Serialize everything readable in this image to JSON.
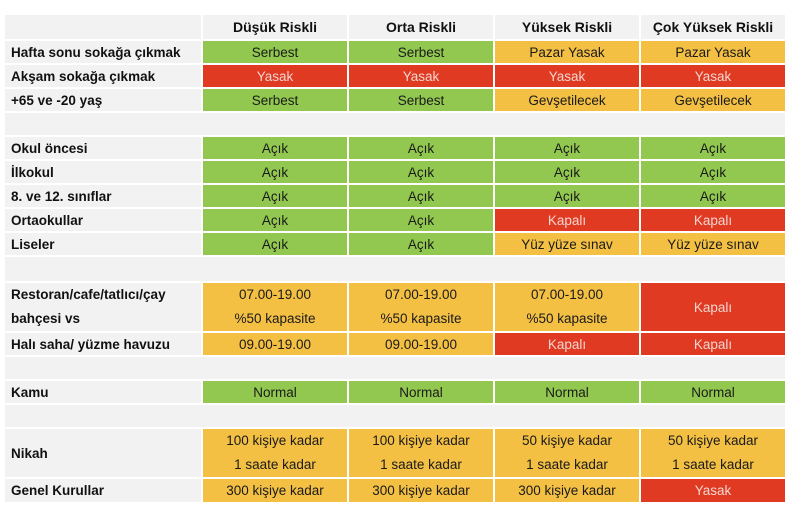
{
  "columns": [
    "Düşük Riskli",
    "Orta Riskli",
    "Yüksek Riskli",
    "Çok Yüksek Riskli"
  ],
  "colors": {
    "green": "#92c84f",
    "yellow": "#f4c044",
    "red": "#e03a22"
  },
  "rows": {
    "hafta_sonu": {
      "label": "Hafta sonu sokağa çıkmak",
      "values": [
        "Serbest",
        "Serbest",
        "Pazar Yasak",
        "Pazar Yasak"
      ]
    },
    "aksam": {
      "label": "Akşam sokağa çıkmak",
      "values": [
        "Yasak",
        "Yasak",
        "Yasak",
        "Yasak"
      ]
    },
    "yas": {
      "label": "+65 ve -20 yaş",
      "values": [
        "Serbest",
        "Serbest",
        "Gevşetilecek",
        "Gevşetilecek"
      ]
    },
    "okul_oncesi": {
      "label": "Okul öncesi",
      "values": [
        "Açık",
        "Açık",
        "Açık",
        "Açık"
      ]
    },
    "ilkokul": {
      "label": "İlkokul",
      "values": [
        "Açık",
        "Açık",
        "Açık",
        "Açık"
      ]
    },
    "siniflar": {
      "label": "8. ve 12. sınıflar",
      "values": [
        "Açık",
        "Açık",
        "Açık",
        "Açık"
      ]
    },
    "ortaokullar": {
      "label": "Ortaokullar",
      "values": [
        "Açık",
        "Açık",
        "Kapalı",
        "Kapalı"
      ]
    },
    "liseler": {
      "label": "Liseler",
      "values": [
        "Açık",
        "Açık",
        "Yüz yüze sınav",
        "Yüz yüze sınav"
      ]
    },
    "restoran": {
      "label_lines": [
        "Restoran/cafe/tatlıcı/çay",
        "bahçesi vs"
      ],
      "values": [
        [
          "07.00-19.00",
          "%50 kapasite"
        ],
        [
          "07.00-19.00",
          "%50 kapasite"
        ],
        [
          "07.00-19.00",
          "%50 kapasite"
        ]
      ],
      "merged_value": "Kapalı"
    },
    "hali_saha": {
      "label": "Halı saha/ yüzme havuzu",
      "values": [
        "09.00-19.00",
        "09.00-19.00",
        "Kapalı",
        "Kapalı"
      ]
    },
    "kamu": {
      "label": "Kamu",
      "values": [
        "Normal",
        "Normal",
        "Normal",
        "Normal"
      ]
    },
    "nikah": {
      "label": "Nikah",
      "values": [
        [
          "100 kişiye kadar",
          "1 saate kadar"
        ],
        [
          "100 kişiye kadar",
          "1 saate kadar"
        ],
        [
          "50 kişiye kadar",
          "1 saate kadar"
        ],
        [
          "50 kişiye kadar",
          "1 saate kadar"
        ]
      ]
    },
    "genel_kurullar": {
      "label": "Genel Kurullar",
      "values": [
        "300 kişiye kadar",
        "300 kişiye kadar",
        "300 kişiye kadar",
        "Yasak"
      ]
    }
  }
}
